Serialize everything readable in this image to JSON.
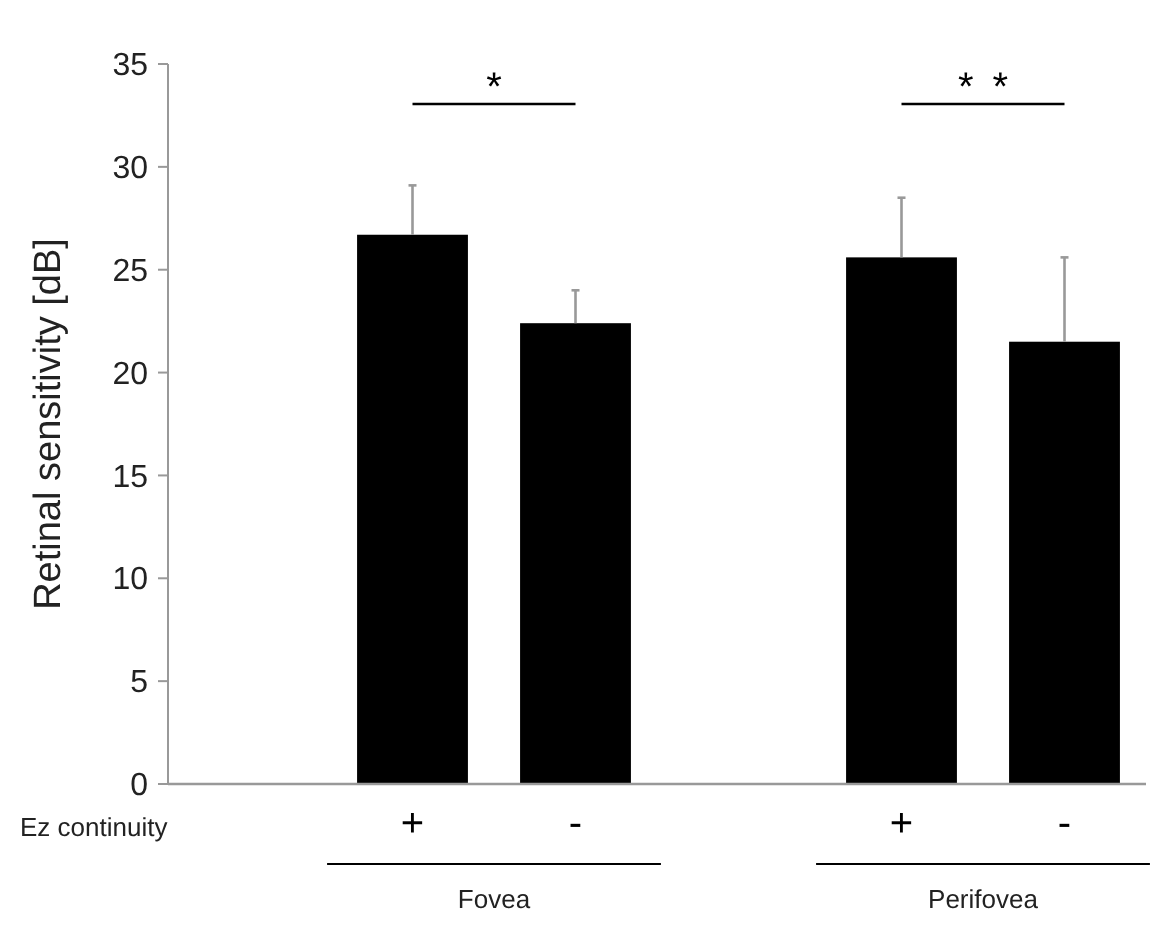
{
  "chart_data": {
    "type": "bar",
    "ylabel": "Retinal sensitivity [dB]",
    "categories": [
      null,
      "+",
      "-",
      null,
      "+",
      "-"
    ],
    "values": [
      null,
      26.7,
      22.4,
      null,
      25.6,
      21.5
    ],
    "errors": [
      null,
      [
        26.7,
        29.1
      ],
      [
        22.4,
        24.0
      ],
      null,
      [
        25.6,
        28.5
      ],
      [
        21.5,
        25.6
      ]
    ],
    "color": "#000000",
    "ylim": [
      0,
      35
    ],
    "yticks": [
      0,
      5,
      10,
      15,
      20,
      25,
      30,
      35
    ],
    "grid": false,
    "annotations": [
      "*",
      "* *",
      "Ez continuity",
      "Fovea",
      "Perifovea"
    ]
  }
}
